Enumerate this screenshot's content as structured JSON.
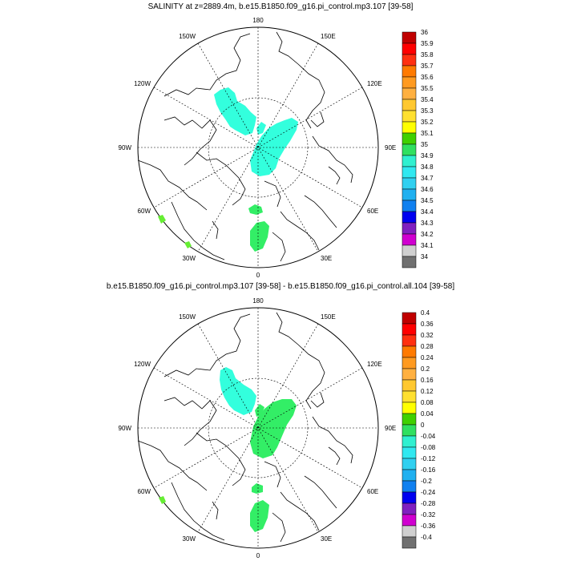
{
  "top_panel": {
    "title": "SALINITY at z=2889.4m, b.e15.B1850.f09_g16.pi_control.mp3.107 [39-58]",
    "lon_labels": {
      "top": "180",
      "bottom": "0",
      "left": "90W",
      "right": "90E",
      "upper_left_1": "150W",
      "upper_left_2": "120W",
      "upper_right_1": "150E",
      "upper_right_2": "120E",
      "lower_left_1": "60W",
      "lower_left_2": "30W",
      "lower_right_1": "60E",
      "lower_right_2": "30E"
    },
    "colorbar": {
      "labels": [
        "36",
        "35.9",
        "35.8",
        "35.7",
        "35.6",
        "35.5",
        "35.4",
        "35.3",
        "35.2",
        "35.1",
        "35",
        "34.9",
        "34.8",
        "34.7",
        "34.6",
        "34.5",
        "34.4",
        "34.3",
        "34.2",
        "34.1",
        "34"
      ]
    }
  },
  "bottom_panel": {
    "title": "b.e15.B1850.f09_g16.pi_control.mp3.107 [39-58] - b.e15.B1850.f09_g16.pi_control.all.104 [39-58]",
    "lon_labels": {
      "top": "180",
      "bottom": "0",
      "left": "90W",
      "right": "90E",
      "upper_left_1": "150W",
      "upper_left_2": "120W",
      "upper_right_1": "150E",
      "upper_right_2": "120E",
      "lower_left_1": "60W",
      "lower_left_2": "30W",
      "lower_right_1": "60E",
      "lower_right_2": "30E"
    },
    "colorbar": {
      "labels": [
        "0.4",
        "0.36",
        "0.32",
        "0.28",
        "0.24",
        "0.2",
        "0.16",
        "0.12",
        "0.08",
        "0.04",
        "0",
        "-0.04",
        "-0.08",
        "-0.12",
        "-0.16",
        "-0.2",
        "-0.24",
        "-0.28",
        "-0.32",
        "-0.36",
        "-0.4"
      ]
    }
  },
  "colors": {
    "scale": [
      "#c00000",
      "#ff0000",
      "#ff3010",
      "#ff7a00",
      "#ff9a20",
      "#ffb040",
      "#ffc830",
      "#ffe030",
      "#ffff00",
      "#40d000",
      "#30e060",
      "#30f0d0",
      "#30e8f0",
      "#30d0f0",
      "#20b0f0",
      "#1080f0",
      "#0000f0",
      "#8020c0",
      "#d000d0",
      "#d0d0d0",
      "#707070"
    ],
    "cyan_patch": "#33ffdd",
    "green_patch": "#33ee66",
    "lime_patch": "#66ee33"
  }
}
